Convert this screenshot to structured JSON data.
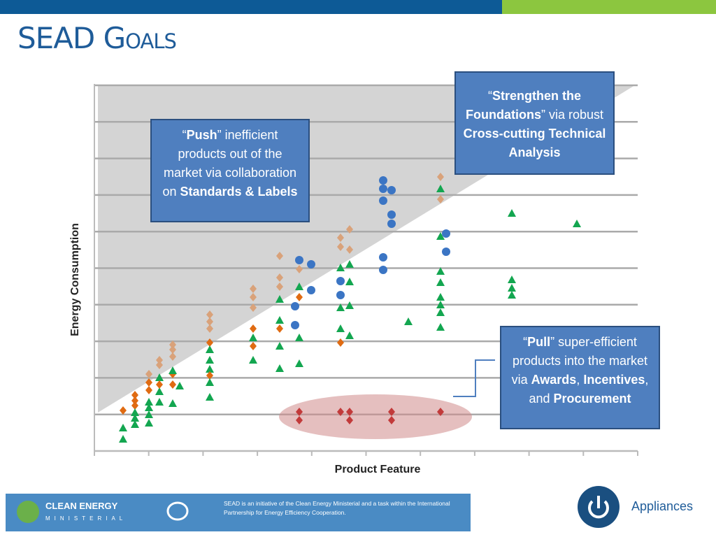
{
  "header": {
    "title": "SEAD Goals"
  },
  "chart": {
    "y_label": "Energy Consumption",
    "x_label": "Product Feature"
  },
  "callouts": [
    {
      "parts": [
        {
          "text": "“",
          "bold": false
        },
        {
          "text": "Push",
          "bold": true
        },
        {
          "text": "” inefficient products out of the market via collaboration on ",
          "bold": false
        },
        {
          "text": "Standards & Labels",
          "bold": true
        }
      ]
    },
    {
      "parts": [
        {
          "text": "“",
          "bold": false
        },
        {
          "text": "Strengthen the Foundations",
          "bold": true
        },
        {
          "text": "” via robust ",
          "bold": false
        },
        {
          "text": "Cross-cutting Technical Analysis",
          "bold": true
        }
      ]
    },
    {
      "parts": [
        {
          "text": "“",
          "bold": false
        },
        {
          "text": "Pull",
          "bold": true
        },
        {
          "text": "” super-efficient products into the market via ",
          "bold": false
        },
        {
          "text": "Awards",
          "bold": true
        },
        {
          "text": ", ",
          "bold": false
        },
        {
          "text": "Incentives",
          "bold": true
        },
        {
          "text": ", and ",
          "bold": false
        },
        {
          "text": "Procurement",
          "bold": true
        }
      ]
    }
  ],
  "footer": {
    "logo_top": "CLEAN ENERGY",
    "logo_bottom": "MINISTERIAL",
    "note": "SEAD is an initiative of the Clean Energy Ministerial and a task within the International Partnership for Energy Efficiency Cooperation.",
    "badge": "Appliances"
  }
}
